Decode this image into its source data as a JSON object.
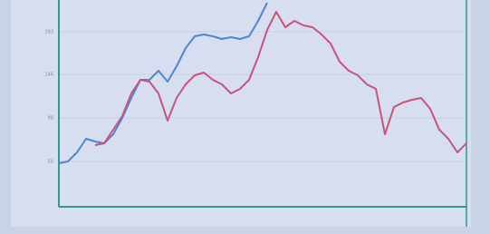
{
  "chart_data": {
    "type": "line",
    "series": [
      {
        "color": "#4f86d6",
        "values": [
          48,
          50,
          60,
          75,
          72,
          70,
          80,
          98,
          120,
          140,
          140,
          150,
          138,
          155,
          175,
          188,
          190,
          188,
          185,
          187,
          185,
          188,
          205,
          225,
          null,
          null,
          null,
          null,
          null,
          null,
          null,
          null,
          null,
          null,
          null,
          null,
          null,
          null,
          null,
          null,
          null,
          null,
          null,
          null,
          null,
          null
        ]
      },
      {
        "color": "#c9547a",
        "values": [
          null,
          null,
          null,
          null,
          68,
          70,
          85,
          100,
          125,
          140,
          138,
          125,
          95,
          120,
          135,
          145,
          148,
          140,
          135,
          125,
          130,
          140,
          165,
          195,
          215,
          198,
          205,
          200,
          198,
          190,
          180,
          160,
          150,
          145,
          135,
          130,
          80,
          110,
          115,
          118,
          120,
          108,
          85,
          75,
          60,
          70
        ]
      }
    ],
    "ylim": [
      0,
      228
    ],
    "yticks": [
      50,
      98,
      146,
      193
    ],
    "grid": true
  }
}
